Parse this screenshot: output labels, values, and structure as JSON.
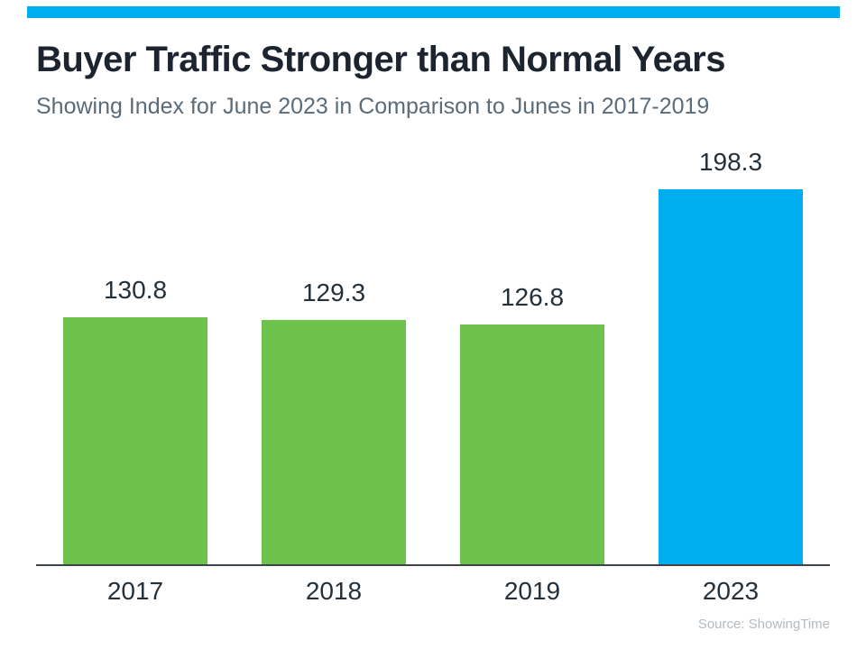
{
  "header": {
    "accent_bar_color": "#00AEEF"
  },
  "title": "Buyer Traffic Stronger than Normal Years",
  "subtitle": "Showing Index for June 2023 in Comparison to Junes in 2017-2019",
  "source": "Source: ShowingTime",
  "chart_data": {
    "type": "bar",
    "title": "Buyer Traffic Stronger than Normal Years",
    "subtitle": "Showing Index for June 2023 in Comparison to Junes in 2017-2019",
    "categories": [
      "2017",
      "2018",
      "2019",
      "2023"
    ],
    "values": [
      130.8,
      129.3,
      126.8,
      198.3
    ],
    "value_labels": [
      "130.8",
      "129.3",
      "126.8",
      "198.3"
    ],
    "bar_colors": [
      "#6CC24A",
      "#6CC24A",
      "#6CC24A",
      "#00AEEF"
    ],
    "highlight_color": "#00AEEF",
    "normal_color": "#6CC24A",
    "xlabel": "",
    "ylabel": "",
    "ylim": [
      0,
      210
    ],
    "grid": false,
    "legend": false,
    "source_note": "Source: ShowingTime"
  }
}
